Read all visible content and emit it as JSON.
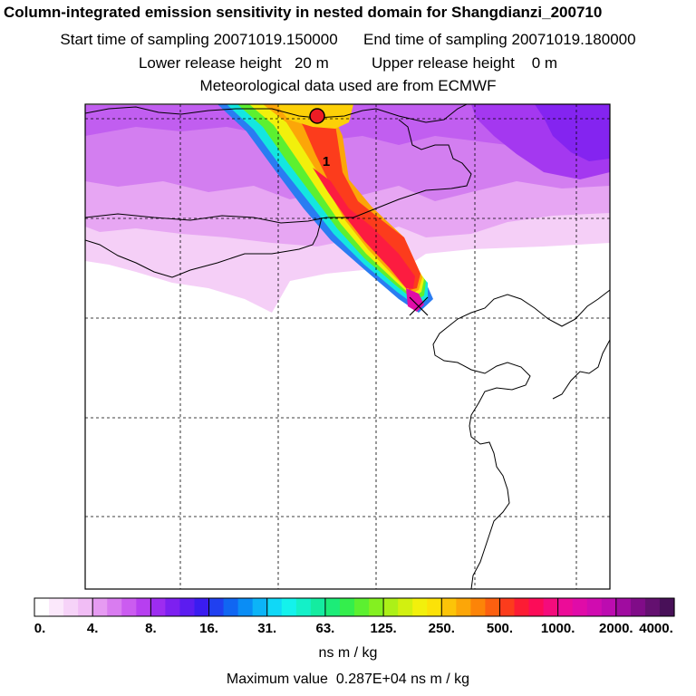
{
  "header": {
    "title": "Column-integrated emission sensitivity in nested domain for Shangdianzi_200710",
    "start_label": "Start time of sampling",
    "start_value": "20071019.150000",
    "end_label": "End time of sampling",
    "end_value": "20071019.180000",
    "lower_label": "Lower release height",
    "lower_value": "20 m",
    "upper_label": "Upper release height",
    "upper_value": "0 m",
    "met_line": "Meteorological data used are from ECMWF"
  },
  "map": {
    "plume_label": "1",
    "release_marker": "red-circle",
    "receptor_marker": "x-cross"
  },
  "colorbar": {
    "tick_labels": [
      "0.",
      "4.",
      "8.",
      "16.",
      "31.",
      "63.",
      "125.",
      "250.",
      "500.",
      "1000.",
      "2000.",
      "4000."
    ],
    "colors": [
      "#ffffff",
      "#fbe8fb",
      "#f6d3f8",
      "#f1bdf5",
      "#e69bf2",
      "#d97cf0",
      "#cb5cf0",
      "#b73ff0",
      "#9d2cf0",
      "#7d20f0",
      "#5c1cf0",
      "#3a1cf0",
      "#2040f0",
      "#1066f2",
      "#0a8df5",
      "#0cb4f7",
      "#10d8f7",
      "#14f2ec",
      "#14f0c8",
      "#14eca0",
      "#1cec78",
      "#34ee4c",
      "#5cf030",
      "#84f020",
      "#acf018",
      "#d2f010",
      "#f2f00c",
      "#fce208",
      "#fcc408",
      "#fca608",
      "#fc8408",
      "#fc6010",
      "#fc3c1c",
      "#fc1c34",
      "#fc0c58",
      "#f40c7c",
      "#ec0c98",
      "#e00ca8",
      "#d00cb0",
      "#bc0cb0",
      "#a00ca0",
      "#800c88",
      "#641070",
      "#481058"
    ],
    "unit_label": "ns m / kg",
    "max_label": "Maximum value",
    "max_value": "0.287E+04",
    "max_unit": "ns m / kg"
  }
}
